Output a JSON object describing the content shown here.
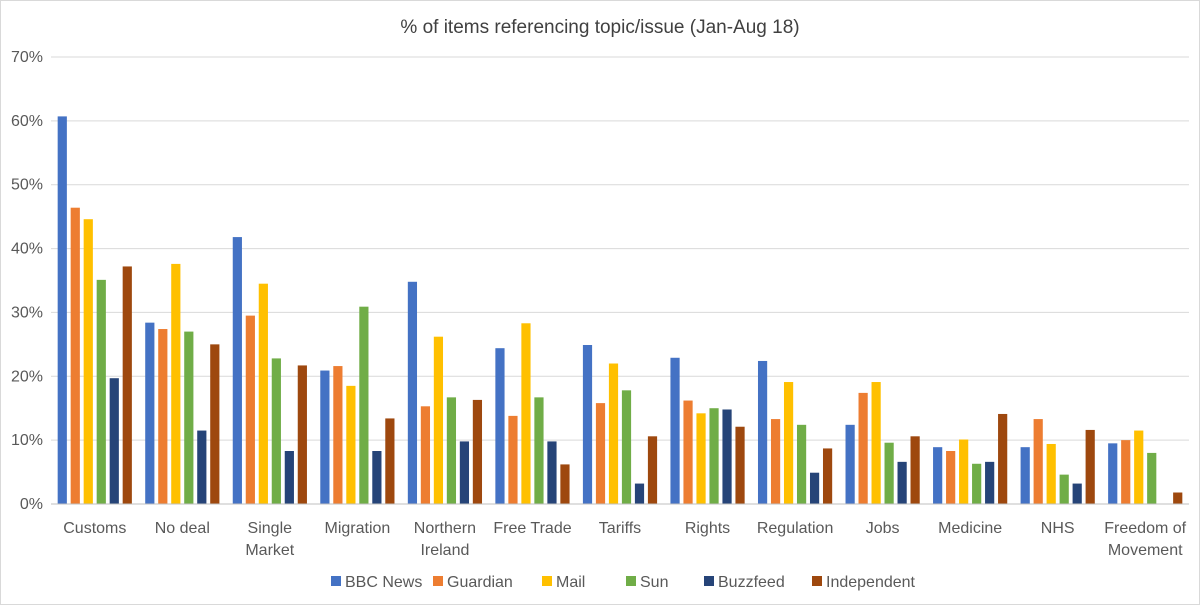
{
  "chart_data": {
    "type": "bar",
    "title": "% of items referencing topic/issue (Jan-Aug 18)",
    "xlabel": "",
    "ylabel": "",
    "ylim": [
      0,
      70
    ],
    "y_ticks": [
      "0%",
      "10%",
      "20%",
      "30%",
      "40%",
      "50%",
      "60%",
      "70%"
    ],
    "y_tick_values": [
      0,
      10,
      20,
      30,
      40,
      50,
      60,
      70
    ],
    "grid": true,
    "legend_position": "bottom",
    "categories": [
      [
        "Customs"
      ],
      [
        "No deal"
      ],
      [
        "Single",
        "Market"
      ],
      [
        "Migration"
      ],
      [
        "Northern",
        "Ireland"
      ],
      [
        "Free Trade"
      ],
      [
        "Tariffs"
      ],
      [
        "Rights"
      ],
      [
        "Regulation"
      ],
      [
        "Jobs"
      ],
      [
        "Medicine"
      ],
      [
        "NHS"
      ],
      [
        "Freedom of",
        "Movement"
      ]
    ],
    "series": [
      {
        "name": "BBC News",
        "color": "#4472C4",
        "values": [
          60.7,
          28.4,
          41.8,
          20.9,
          34.8,
          24.4,
          24.9,
          22.9,
          22.4,
          12.4,
          8.9,
          8.9,
          9.5
        ]
      },
      {
        "name": "Guardian",
        "color": "#ED7D31",
        "values": [
          46.4,
          27.4,
          29.5,
          21.6,
          15.3,
          13.8,
          15.8,
          16.2,
          13.3,
          17.4,
          8.3,
          13.3,
          10.0
        ]
      },
      {
        "name": "Mail",
        "color": "#FFC000",
        "values": [
          44.6,
          37.6,
          34.5,
          18.5,
          26.2,
          28.3,
          22.0,
          14.2,
          19.1,
          19.1,
          10.1,
          9.4,
          11.5
        ]
      },
      {
        "name": "Sun",
        "color": "#70AD47",
        "values": [
          35.1,
          27.0,
          22.8,
          30.9,
          16.7,
          16.7,
          17.8,
          15.0,
          12.4,
          9.6,
          6.3,
          4.6,
          8.0
        ]
      },
      {
        "name": "Buzzfeed",
        "color": "#264478",
        "values": [
          19.7,
          11.5,
          8.3,
          8.3,
          9.8,
          9.8,
          3.2,
          14.8,
          4.9,
          6.6,
          6.6,
          3.2,
          0
        ]
      },
      {
        "name": "Independent",
        "color": "#9E480E",
        "values": [
          37.2,
          25.0,
          21.7,
          13.4,
          16.3,
          6.2,
          10.6,
          12.1,
          8.7,
          10.6,
          14.1,
          11.6,
          1.8
        ]
      }
    ]
  }
}
